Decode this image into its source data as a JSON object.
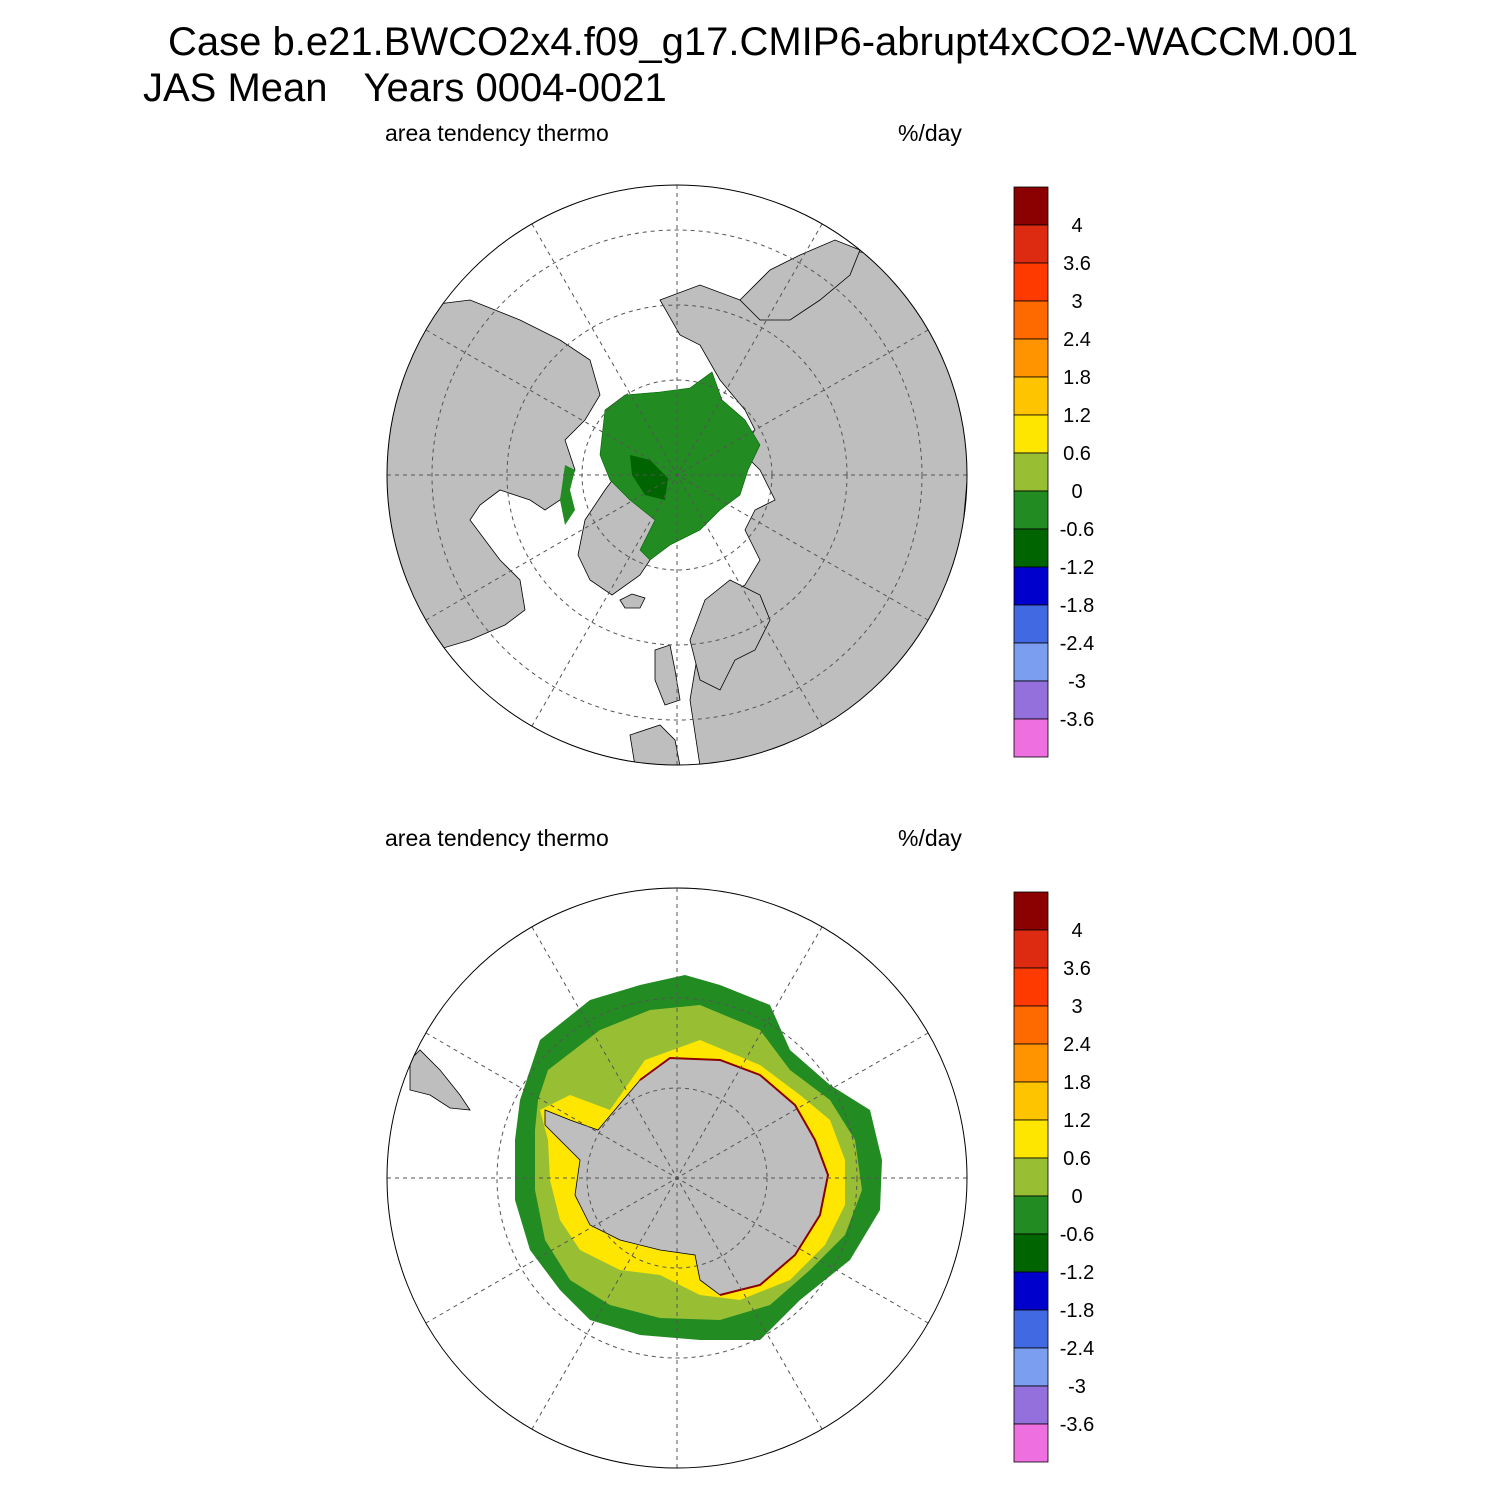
{
  "header": {
    "case_title": "Case b.e21.BWCO2x4.f09_g17.CMIP6-abrupt4xCO2-WACCM.001",
    "season": "JAS Mean",
    "years": "Years 0004-0021"
  },
  "panels": [
    {
      "hemisphere": "north",
      "field_label": "area tendency thermo",
      "units_label": "%/day"
    },
    {
      "hemisphere": "south",
      "field_label": "area tendency thermo",
      "units_label": "%/day"
    }
  ],
  "colorbar": {
    "labels": [
      "4",
      "3.6",
      "3",
      "2.4",
      "1.8",
      "1.2",
      "0.6",
      "0",
      "-0.6",
      "-1.2",
      "-1.8",
      "-2.4",
      "-3",
      "-3.6"
    ],
    "colors": [
      "#8b0000",
      "#dd2b12",
      "#ff3a00",
      "#ff6a00",
      "#ff9400",
      "#ffc400",
      "#ffe600",
      "#98bf34",
      "#228b22",
      "#006400",
      "#0000cd",
      "#4169e1",
      "#7b9ef0",
      "#9370db",
      "#ee6fdf"
    ]
  },
  "map_colors": {
    "land": "#bebebe",
    "ocean": "#ffffff"
  }
}
